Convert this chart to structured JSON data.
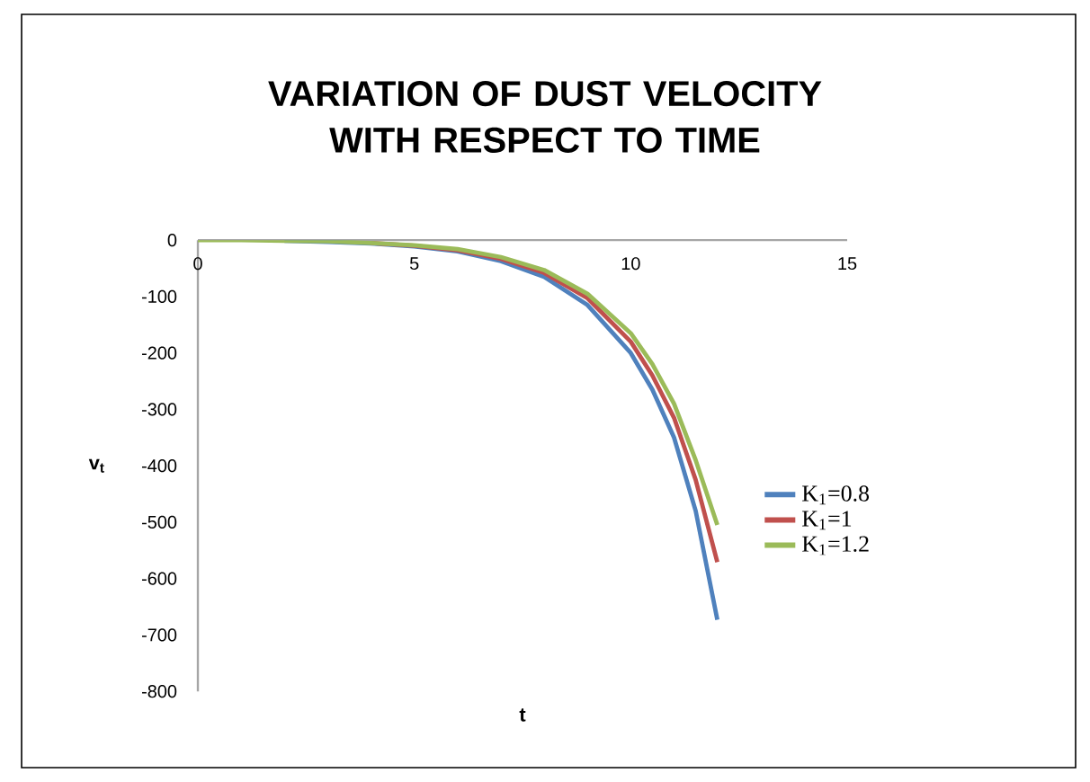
{
  "chart_data": {
    "type": "line",
    "title": "VARIATION OF DUST VELOCITY WITH RESPECT TO TIME",
    "xlabel": "t",
    "ylabel": "v$_{t}$",
    "x": [
      0,
      1,
      2,
      3,
      4,
      5,
      6,
      7,
      8,
      9,
      10,
      10.5,
      11,
      11.5,
      12
    ],
    "series": [
      {
        "name": "K$_{1}$=0.8",
        "color": "#4f81bd",
        "values": [
          null,
          null,
          -1,
          -3,
          -6,
          -11,
          -20,
          -37,
          -65,
          -115,
          -200,
          -265,
          -350,
          -480,
          -673
        ]
      },
      {
        "name": "K$_{1}$=1",
        "color": "#c0504d",
        "values": [
          null,
          null,
          null,
          null,
          -5,
          -10,
          -18,
          -33,
          -58,
          -103,
          -180,
          -240,
          -315,
          -425,
          -571
        ]
      },
      {
        "name": "K$_{1}$=1.2",
        "color": "#9bbb59",
        "values": [
          0,
          0,
          -1,
          -2,
          -5,
          -9,
          -16,
          -30,
          -53,
          -95,
          -165,
          -220,
          -290,
          -390,
          -505
        ]
      }
    ],
    "xlim": [
      0,
      15
    ],
    "ylim": [
      -800,
      0
    ],
    "xticks": [
      0,
      5,
      10,
      15
    ],
    "yticks": [
      -800,
      -700,
      -600,
      -500,
      -400,
      -300,
      -200,
      -100,
      0
    ],
    "legend": "right",
    "marker": "none",
    "line_style": "solid",
    "grid": false
  }
}
